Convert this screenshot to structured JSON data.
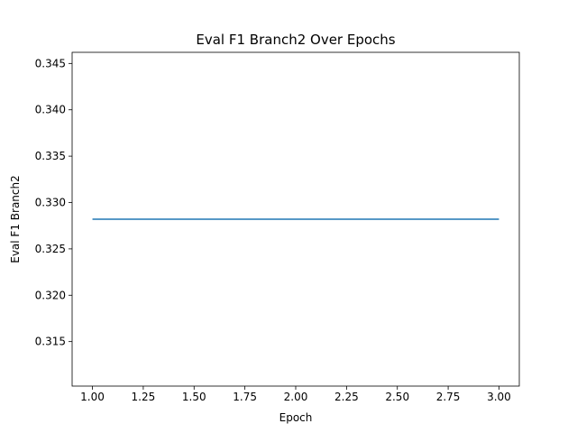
{
  "chart_data": {
    "type": "line",
    "title": "Eval F1 Branch2 Over Epochs",
    "xlabel": "Epoch",
    "ylabel": "Eval F1 Branch2",
    "x": [
      1,
      2,
      3
    ],
    "series": [
      {
        "values": [
          0.3282,
          0.3282,
          0.3282
        ],
        "color": "#1f77b4"
      }
    ],
    "xlim": [
      0.9,
      3.1
    ],
    "ylim": [
      0.3102,
      0.3462
    ],
    "xticks": [
      1.0,
      1.25,
      1.5,
      1.75,
      2.0,
      2.25,
      2.5,
      2.75,
      3.0
    ],
    "xtick_labels": [
      "1.00",
      "1.25",
      "1.50",
      "1.75",
      "2.00",
      "2.25",
      "2.50",
      "2.75",
      "3.00"
    ],
    "yticks": [
      0.315,
      0.32,
      0.325,
      0.33,
      0.335,
      0.34,
      0.345
    ],
    "ytick_labels": [
      "0.315",
      "0.320",
      "0.325",
      "0.330",
      "0.335",
      "0.340",
      "0.345"
    ],
    "grid": false,
    "legend": "none"
  }
}
